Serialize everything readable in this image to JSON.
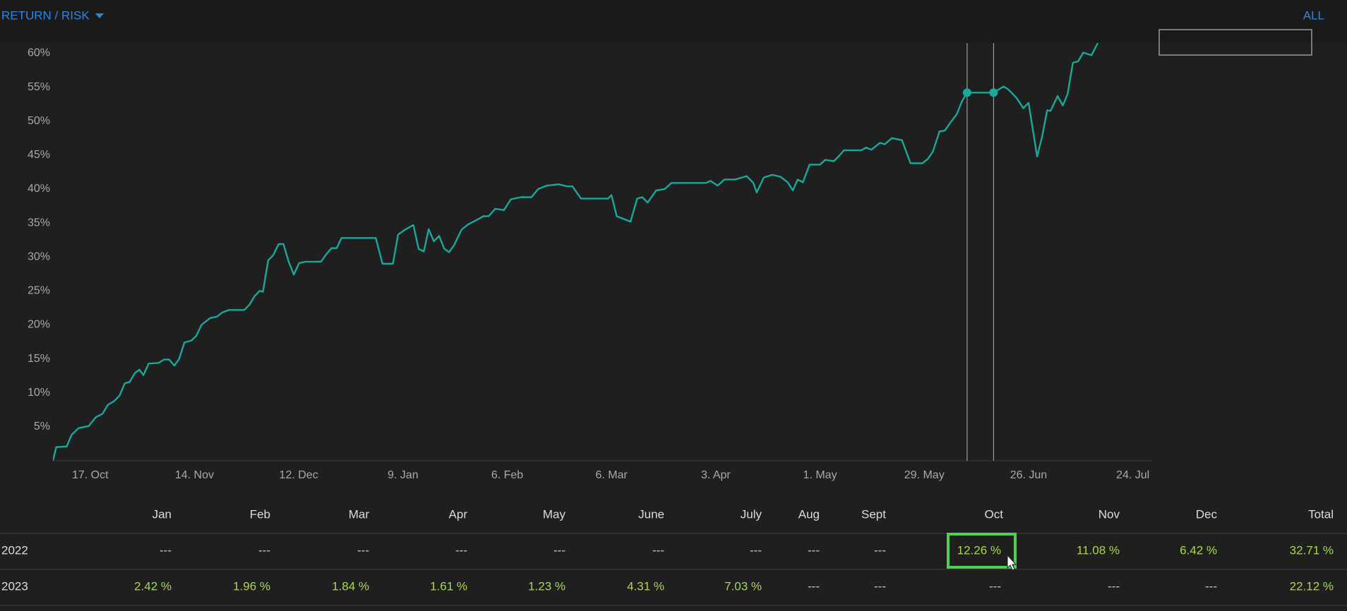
{
  "header": {
    "title": "RETURN / RISK",
    "range": "ALL"
  },
  "chart_data": {
    "type": "line",
    "x": [
      0,
      0.9,
      3.7,
      5.0,
      6.9,
      9.6,
      11.5,
      13.3,
      14.7,
      16.5,
      17.9,
      19.3,
      20.6,
      22.0,
      23.2,
      24.3,
      25.7,
      28.4,
      29.8,
      31.2,
      32.6,
      33.9,
      35.3,
      37.2,
      38.5,
      39.9,
      42.2,
      44.0,
      45.4,
      47.3,
      51.4,
      52.8,
      54.1,
      55.5,
      56.4,
      57.8,
      59.2,
      60.6,
      61.9,
      63.3,
      64.7,
      66.1,
      67.9,
      72.0,
      73.4,
      74.8,
      76.2,
      77.5,
      86.7,
      88.5,
      91.3,
      92.7,
      94.5,
      96.8,
      98.2,
      99.6,
      100.9,
      102.3,
      103.7,
      105.1,
      106.4,
      107.8,
      109.7,
      111.5,
      113.3,
      115.6,
      117.0,
      118.8,
      121.1,
      123.0,
      125.7,
      128.5,
      130.3,
      132.6,
      135.8,
      138.1,
      139.5,
      141.8,
      149.1,
      150.0,
      151.4,
      155.1,
      156.9,
      158.3,
      159.7,
      162.0,
      164.3,
      166.1,
      169.3,
      175.3,
      176.6,
      178.5,
      180.3,
      183.1,
      186.3,
      188.1,
      189.0,
      190.9,
      193.2,
      195.4,
      197.3,
      198.7,
      200.0,
      201.4,
      203.2,
      206.0,
      207.4,
      209.7,
      211.0,
      212.4,
      217.0,
      218.4,
      219.8,
      222.1,
      223.4,
      225.3,
      228.0,
      230.3,
      233.5,
      234.9,
      236.3,
      238.1,
      239.5,
      240.9,
      242.7,
      244.1,
      245.5,
      252.6,
      255.3,
      256.5,
      258.8,
      260.6,
      262.0,
      264.3,
      265.6,
      267.0,
      267.9,
      269.8,
      271.2,
      272.5,
      273.9,
      275.3,
      276.7,
      278.9,
      280.6
    ],
    "series": [
      {
        "color": "#1aa89a",
        "values": [
          0,
          2.0,
          2.1,
          3.8,
          4.8,
          5.1,
          6.4,
          6.9,
          8.2,
          8.8,
          9.6,
          11.4,
          11.6,
          12.9,
          13.4,
          12.6,
          14.3,
          14.4,
          14.9,
          14.9,
          14.0,
          15.0,
          17.4,
          17.7,
          18.4,
          20.0,
          21.0,
          21.2,
          21.8,
          22.2,
          22.2,
          23.0,
          24.2,
          25.0,
          24.9,
          29.5,
          30.3,
          31.9,
          31.9,
          29.3,
          27.4,
          29.1,
          29.3,
          29.3,
          30.4,
          31.3,
          31.3,
          32.8,
          32.8,
          29.0,
          29.0,
          33.3,
          34.0,
          34.7,
          31.2,
          30.8,
          34.1,
          32.3,
          33.1,
          31.2,
          30.7,
          31.8,
          34.0,
          34.8,
          35.3,
          36.0,
          36.0,
          37.1,
          36.9,
          38.5,
          38.8,
          38.8,
          40.0,
          40.5,
          40.7,
          40.4,
          40.4,
          38.6,
          38.6,
          39.1,
          36.0,
          35.2,
          38.6,
          38.8,
          38.0,
          39.8,
          40.0,
          40.9,
          40.9,
          40.9,
          41.2,
          40.5,
          41.4,
          41.4,
          41.9,
          40.9,
          39.5,
          41.7,
          42.1,
          41.8,
          41.0,
          39.8,
          41.4,
          41.0,
          43.6,
          43.6,
          44.3,
          44.1,
          44.8,
          45.7,
          45.7,
          46.1,
          45.8,
          46.8,
          46.6,
          47.5,
          47.2,
          43.8,
          43.8,
          44.4,
          45.5,
          48.5,
          48.6,
          49.7,
          51.0,
          52.9,
          54.2,
          54.2,
          55.1,
          54.7,
          53.4,
          51.9,
          52.7,
          44.8,
          47.6,
          51.6,
          51.5,
          53.7,
          52.3,
          54.0,
          58.6,
          58.8,
          60.1,
          59.7,
          61.5
        ]
      }
    ],
    "xlim": [
      0,
      295
    ],
    "xticks": [
      {
        "value": 10,
        "label": "17. Oct"
      },
      {
        "value": 38,
        "label": "14. Nov"
      },
      {
        "value": 66,
        "label": "12. Dec"
      },
      {
        "value": 94,
        "label": "9. Jan"
      },
      {
        "value": 122,
        "label": "6. Feb"
      },
      {
        "value": 150,
        "label": "6. Mar"
      },
      {
        "value": 178,
        "label": "3. Apr"
      },
      {
        "value": 206,
        "label": "1. May"
      },
      {
        "value": 234,
        "label": "29. May"
      },
      {
        "value": 262,
        "label": "26. Jun"
      },
      {
        "value": 290,
        "label": "24. Jul"
      }
    ],
    "ylim": [
      0,
      61.5
    ],
    "yticks": [
      {
        "value": 5,
        "label": "5%"
      },
      {
        "value": 10,
        "label": "10%"
      },
      {
        "value": 15,
        "label": "15%"
      },
      {
        "value": 20,
        "label": "20%"
      },
      {
        "value": 25,
        "label": "25%"
      },
      {
        "value": 30,
        "label": "30%"
      },
      {
        "value": 35,
        "label": "35%"
      },
      {
        "value": 40,
        "label": "40%"
      },
      {
        "value": 45,
        "label": "45%"
      },
      {
        "value": 50,
        "label": "50%"
      },
      {
        "value": 55,
        "label": "55%"
      },
      {
        "value": 60,
        "label": "60%"
      }
    ],
    "crosshair_x": [
      245.5,
      252.6
    ]
  },
  "table": {
    "columns": [
      "Jan",
      "Feb",
      "Mar",
      "Apr",
      "May",
      "June",
      "July",
      "Aug",
      "Sept",
      "Oct",
      "Nov",
      "Dec",
      "Total"
    ],
    "rows": [
      {
        "label": "2022",
        "cells": [
          "---",
          "---",
          "---",
          "---",
          "---",
          "---",
          "---",
          "---",
          "---",
          "12.26 %",
          "11.08 %",
          "6.42 %",
          "32.71 %"
        ]
      },
      {
        "label": "2023",
        "cells": [
          "2.42 %",
          "1.96 %",
          "1.84 %",
          "1.61 %",
          "1.23 %",
          "4.31 %",
          "7.03 %",
          "---",
          "---",
          "---",
          "---",
          "---",
          "22.12 %"
        ]
      }
    ]
  }
}
